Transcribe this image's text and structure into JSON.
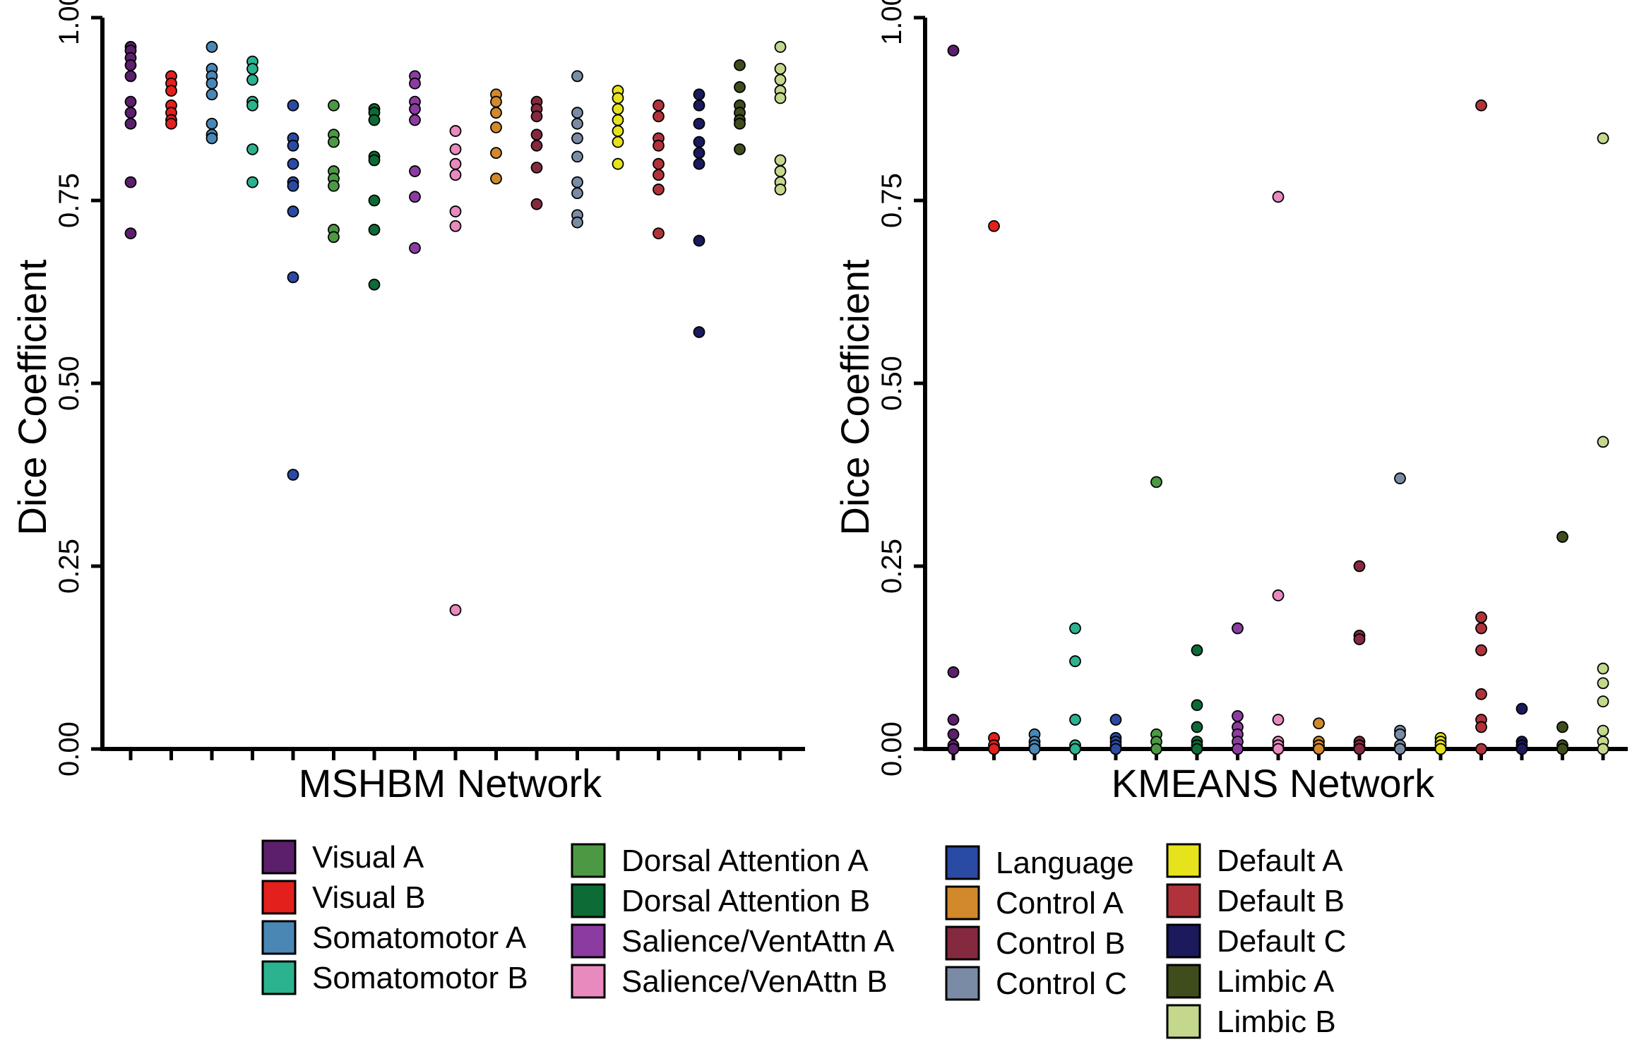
{
  "chart_data": [
    {
      "type": "scatter",
      "xlabel": "MSHBM Network",
      "ylabel": "Dice Coefficient",
      "ylim": [
        0,
        1
      ],
      "yticks": [
        "0.00",
        "0.25",
        "0.50",
        "0.75",
        "1.00"
      ],
      "series": [
        {
          "name": "Visual A",
          "values": [
            0.96,
            0.955,
            0.945,
            0.935,
            0.92,
            0.885,
            0.87,
            0.855,
            0.775,
            0.705
          ]
        },
        {
          "name": "Visual B",
          "values": [
            0.92,
            0.91,
            0.9,
            0.88,
            0.87,
            0.86,
            0.855
          ]
        },
        {
          "name": "Somatomotor A",
          "values": [
            0.96,
            0.93,
            0.92,
            0.91,
            0.895,
            0.855,
            0.84,
            0.835
          ]
        },
        {
          "name": "Somatomotor B",
          "values": [
            0.94,
            0.93,
            0.915,
            0.885,
            0.88,
            0.82,
            0.775
          ]
        },
        {
          "name": "Language",
          "values": [
            0.88,
            0.835,
            0.825,
            0.8,
            0.775,
            0.77,
            0.735,
            0.645,
            0.375
          ]
        },
        {
          "name": "Dorsal Attention A",
          "values": [
            0.88,
            0.84,
            0.83,
            0.79,
            0.78,
            0.77,
            0.71,
            0.7
          ]
        },
        {
          "name": "Dorsal Attention B",
          "values": [
            0.875,
            0.87,
            0.86,
            0.81,
            0.805,
            0.75,
            0.71,
            0.635
          ]
        },
        {
          "name": "Salience/VentAttn A",
          "values": [
            0.92,
            0.91,
            0.885,
            0.875,
            0.86,
            0.79,
            0.755,
            0.685
          ]
        },
        {
          "name": "Salience/VenAttn B",
          "values": [
            0.845,
            0.82,
            0.8,
            0.785,
            0.735,
            0.715,
            0.19
          ]
        },
        {
          "name": "Control A",
          "values": [
            0.895,
            0.885,
            0.87,
            0.85,
            0.815,
            0.78
          ]
        },
        {
          "name": "Control B",
          "values": [
            0.885,
            0.875,
            0.865,
            0.84,
            0.825,
            0.795,
            0.745
          ]
        },
        {
          "name": "Control C",
          "values": [
            0.92,
            0.87,
            0.855,
            0.835,
            0.81,
            0.775,
            0.76,
            0.73,
            0.72
          ]
        },
        {
          "name": "Default A",
          "values": [
            0.9,
            0.89,
            0.875,
            0.86,
            0.845,
            0.83,
            0.8
          ]
        },
        {
          "name": "Default B",
          "values": [
            0.88,
            0.865,
            0.835,
            0.825,
            0.8,
            0.785,
            0.765,
            0.705
          ]
        },
        {
          "name": "Default C",
          "values": [
            0.895,
            0.88,
            0.855,
            0.83,
            0.815,
            0.8,
            0.695,
            0.57
          ]
        },
        {
          "name": "Limbic A",
          "values": [
            0.935,
            0.905,
            0.88,
            0.87,
            0.86,
            0.855,
            0.82
          ]
        },
        {
          "name": "Limbic B",
          "values": [
            0.96,
            0.93,
            0.915,
            0.9,
            0.89,
            0.805,
            0.79,
            0.775,
            0.765
          ]
        }
      ]
    },
    {
      "type": "scatter",
      "xlabel": "KMEANS Network",
      "ylabel": "Dice Coefficient",
      "ylim": [
        0,
        1
      ],
      "yticks": [
        "0.00",
        "0.25",
        "0.50",
        "0.75",
        "1.00"
      ],
      "series": [
        {
          "name": "Visual A",
          "values": [
            0.955,
            0.105,
            0.04,
            0.02,
            0.005,
            0.0
          ]
        },
        {
          "name": "Visual B",
          "values": [
            0.715,
            0.015,
            0.005,
            0.0
          ]
        },
        {
          "name": "Somatomotor A",
          "values": [
            0.02,
            0.01,
            0.005,
            0.0
          ]
        },
        {
          "name": "Somatomotor B",
          "values": [
            0.165,
            0.12,
            0.04,
            0.005,
            0.0
          ]
        },
        {
          "name": "Language",
          "values": [
            0.04,
            0.015,
            0.01,
            0.005,
            0.0
          ]
        },
        {
          "name": "Dorsal Attention A",
          "values": [
            0.365,
            0.02,
            0.01,
            0.0
          ]
        },
        {
          "name": "Dorsal Attention B",
          "values": [
            0.135,
            0.06,
            0.03,
            0.01,
            0.005,
            0.0
          ]
        },
        {
          "name": "Salience/VentAttn A",
          "values": [
            0.165,
            0.045,
            0.03,
            0.02,
            0.01,
            0.0
          ]
        },
        {
          "name": "Salience/VenAttn B",
          "values": [
            0.755,
            0.21,
            0.04,
            0.01,
            0.005,
            0.0
          ]
        },
        {
          "name": "Control A",
          "values": [
            0.035,
            0.01,
            0.005,
            0.0
          ]
        },
        {
          "name": "Control B",
          "values": [
            0.25,
            0.155,
            0.15,
            0.01,
            0.005,
            0.0
          ]
        },
        {
          "name": "Control C",
          "values": [
            0.37,
            0.025,
            0.02,
            0.005,
            0.0
          ]
        },
        {
          "name": "Default A",
          "values": [
            0.015,
            0.01,
            0.005,
            0.0
          ]
        },
        {
          "name": "Default B",
          "values": [
            0.88,
            0.18,
            0.165,
            0.135,
            0.075,
            0.04,
            0.03,
            0.0
          ]
        },
        {
          "name": "Default C",
          "values": [
            0.055,
            0.01,
            0.005,
            0.0
          ]
        },
        {
          "name": "Limbic A",
          "values": [
            0.29,
            0.03,
            0.005,
            0.0
          ]
        },
        {
          "name": "Limbic B",
          "values": [
            0.835,
            0.42,
            0.11,
            0.09,
            0.065,
            0.025,
            0.01,
            0.0
          ]
        }
      ]
    }
  ],
  "legend": {
    "items": [
      {
        "name": "Visual A",
        "color": "#5b1f6b"
      },
      {
        "name": "Visual B",
        "color": "#e3201b"
      },
      {
        "name": "Somatomotor A",
        "color": "#4a87b5"
      },
      {
        "name": "Somatomotor B",
        "color": "#2bb28f"
      },
      {
        "name": "Dorsal Attention A",
        "color": "#4b9a43"
      },
      {
        "name": "Dorsal Attention B",
        "color": "#0d6b36"
      },
      {
        "name": "Salience/VentAttn A",
        "color": "#8c3ca0"
      },
      {
        "name": "Salience/VenAttn B",
        "color": "#e98abf"
      },
      {
        "name": "Language",
        "color": "#2a4aa3"
      },
      {
        "name": "Control A",
        "color": "#d1892b"
      },
      {
        "name": "Control B",
        "color": "#85293f"
      },
      {
        "name": "Control C",
        "color": "#7a8ca5"
      },
      {
        "name": "Default A",
        "color": "#e6e31c"
      },
      {
        "name": "Default B",
        "color": "#b0333b"
      },
      {
        "name": "Default C",
        "color": "#1a1a5c"
      },
      {
        "name": "Limbic A",
        "color": "#3f4d1c"
      },
      {
        "name": "Limbic B",
        "color": "#c3d88d"
      }
    ]
  }
}
